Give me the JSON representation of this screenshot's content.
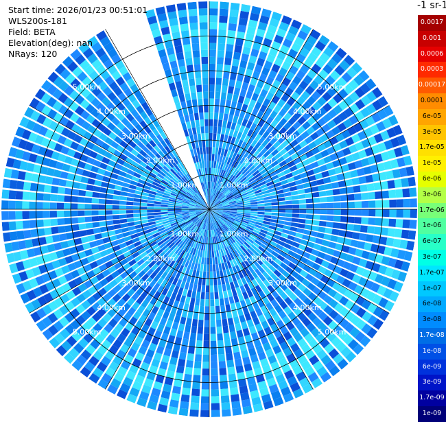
{
  "header": {
    "start_time": "Start time: 2026/01/23 00:51:01",
    "instrument": "WLS200s-181",
    "field": "Field: BETA",
    "elevation": "Elevation(deg): nan",
    "nrays": "NRays: 120"
  },
  "colorbar": {
    "title": "-1 sr-1",
    "labels": [
      "0.0017",
      "0.001",
      "0.0006",
      "0.0003",
      "0.00017",
      "0.0001",
      "6e-05",
      "3e-05",
      "1.7e-05",
      "1e-05",
      "6e-06",
      "3e-06",
      "1.7e-06",
      "1e-06",
      "6e-07",
      "3e-07",
      "1.7e-07",
      "1e-07",
      "6e-08",
      "3e-08",
      "1.7e-08",
      "1e-08",
      "6e-09",
      "3e-09",
      "1.7e-09",
      "1e-09"
    ],
    "colors": [
      "#a50000",
      "#c80000",
      "#e60000",
      "#ff2a00",
      "#ff5a00",
      "#ff8c00",
      "#ffa500",
      "#ffc400",
      "#ffe000",
      "#fff000",
      "#e6ff00",
      "#b4ff46",
      "#78ff78",
      "#50ffa0",
      "#28ffc8",
      "#00ffe6",
      "#00e6ff",
      "#00c8ff",
      "#00aaff",
      "#008cff",
      "#006ee6",
      "#0050e6",
      "#0032dc",
      "#0014c8",
      "#0000a0",
      "#000078"
    ]
  },
  "chart_data": {
    "type": "heatmap",
    "projection": "polar PPI",
    "field": "BETA",
    "range_rings_km": [
      1.0,
      2.0,
      3.0,
      4.0,
      5.0
    ],
    "range_labels": [
      "1.00km",
      "2.00km",
      "3.00km",
      "4.00km",
      "5.00km"
    ],
    "max_range_km": 6.0,
    "nrays": 120,
    "missing_sector_deg": [
      -30,
      -18
    ],
    "dominant_value_range": [
      "3e-08",
      "1.7e-07"
    ],
    "colorscale": "log",
    "color_min": "1e-09",
    "color_max": "0.0017"
  }
}
